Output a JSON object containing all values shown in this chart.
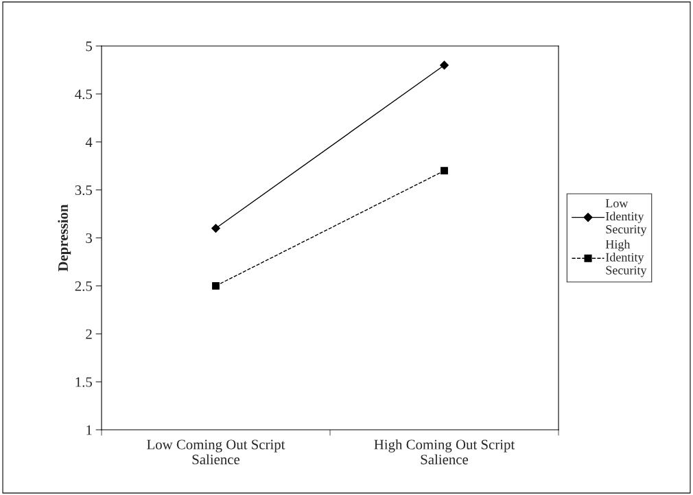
{
  "chart_data": {
    "type": "line",
    "ylabel": "Depression",
    "categories": [
      "Low Coming Out Script Salience",
      "High Coming Out Script Salience"
    ],
    "series": [
      {
        "name": "Low Identity Security",
        "color": "#000000",
        "values": [
          3.1,
          4.8
        ],
        "marker": "diamond",
        "line_style": "solid"
      },
      {
        "name": "High Identity Security",
        "color": "#000000",
        "values": [
          2.5,
          3.7
        ],
        "marker": "square",
        "line_style": "dashed"
      }
    ],
    "ylim": [
      1,
      5
    ],
    "yticks": [
      1,
      1.5,
      2,
      2.5,
      3,
      3.5,
      4,
      4.5,
      5
    ],
    "grid": false,
    "legend": "right"
  }
}
